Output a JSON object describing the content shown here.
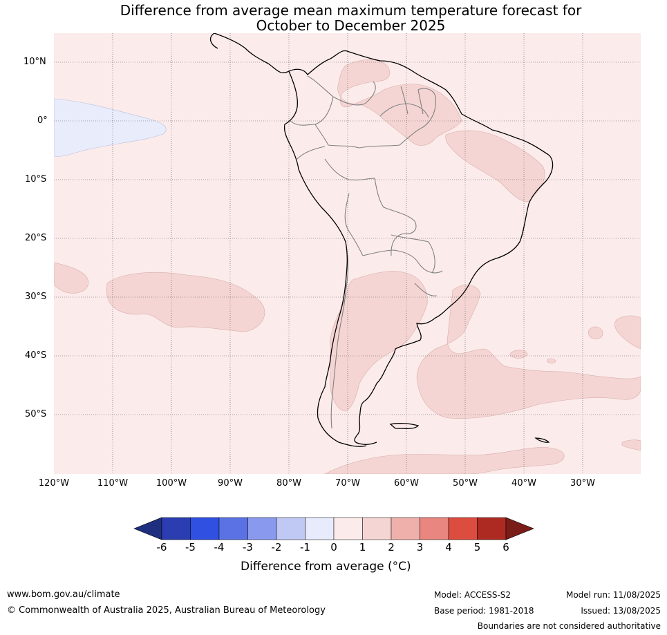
{
  "title": {
    "line1": "Difference from average mean maximum temperature forecast for",
    "line2": "October to December 2025"
  },
  "map": {
    "lat_labels": [
      "10°N",
      "0°",
      "10°S",
      "20°S",
      "30°S",
      "40°S",
      "50°S"
    ],
    "lon_labels": [
      "120°W",
      "110°W",
      "100°W",
      "90°W",
      "80°W",
      "70°W",
      "60°W",
      "50°W",
      "40°W",
      "30°W"
    ],
    "colors": {
      "background_0_1": "#fbebea",
      "band_1_2": "#f4d5d3",
      "band_minus1_0": "#e8ecfb",
      "coastline": "#000000",
      "borders": "#7f7f7f",
      "gridlines": "#444444"
    }
  },
  "colorbar": {
    "tick_labels": [
      "-6",
      "-5",
      "-4",
      "-3",
      "-2",
      "-1",
      "0",
      "1",
      "2",
      "3",
      "4",
      "5",
      "6"
    ],
    "colors": [
      "#1f2f7f",
      "#2b3db0",
      "#2f50e0",
      "#5a72e4",
      "#8899ee",
      "#c0c8f4",
      "#e8ebfb",
      "#fbebea",
      "#f5d5d3",
      "#efb0ab",
      "#e8867f",
      "#dc4c3f",
      "#ad2a22",
      "#7a1d18"
    ],
    "label": "Difference from average (°C)"
  },
  "footer": {
    "website": "www.bom.gov.au/climate",
    "copyright": "© Commonwealth of Australia 2025, Australian Bureau of Meteorology",
    "model": "Model: ACCESS-S2",
    "base_period": "Base period: 1981-2018",
    "model_run": "Model run: 11/08/2025",
    "issued": "Issued: 13/08/2025",
    "disclaimer": "Boundaries are not considered authoritative"
  }
}
